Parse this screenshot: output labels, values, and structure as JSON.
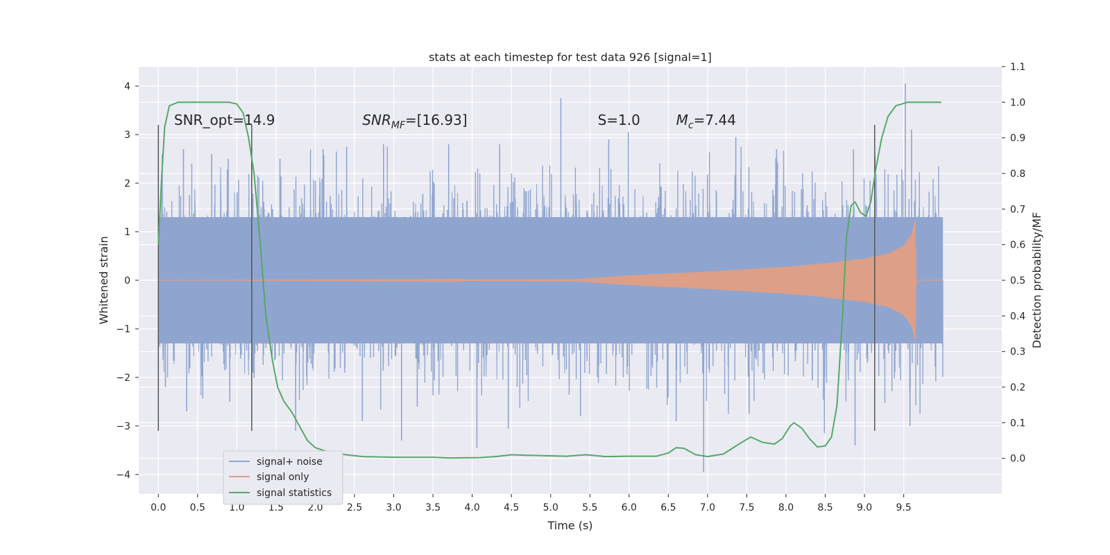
{
  "chart_data": {
    "type": "line",
    "title": "stats at each timestep for test data 926 [signal=1]",
    "xlabel": "Time (s)",
    "ylabel": "Whitened strain",
    "ylabel_right": "Detection probability/MF",
    "xlim": [
      -0.25,
      10.75
    ],
    "ylim": [
      -4.4,
      4.4
    ],
    "ylim_right": [
      -0.1,
      1.1
    ],
    "x_ticks": [
      "0.0",
      "0.5",
      "1.0",
      "1.5",
      "2.0",
      "2.5",
      "3.0",
      "3.5",
      "4.0",
      "4.5",
      "5.0",
      "5.5",
      "6.0",
      "6.5",
      "7.0",
      "7.5",
      "8.0",
      "8.5",
      "9.0",
      "9.5"
    ],
    "y_ticks": [
      "4",
      "3",
      "2",
      "1",
      "0",
      "−1",
      "−2",
      "−3",
      "−4"
    ],
    "y_ticks_right": [
      "1.1",
      "1.0",
      "0.9",
      "0.8",
      "0.7",
      "0.6",
      "0.5",
      "0.4",
      "0.3",
      "0.2",
      "0.1",
      "0.0"
    ],
    "grid": true,
    "legend_position": "lower-left",
    "annotations": [
      {
        "text": "SNR_opt=14.9",
        "x": 0.2,
        "y": 3.2
      },
      {
        "text": "SNR_MF=[16.93]",
        "x": 2.6,
        "y": 3.2
      },
      {
        "text": "S=1.0",
        "x": 5.6,
        "y": 3.2
      },
      {
        "text": "M_c=7.44",
        "x": 6.6,
        "y": 3.2
      }
    ],
    "vertical_lines": [
      {
        "x": 0.0,
        "y_range": [
          -3.1,
          3.2
        ]
      },
      {
        "x": 1.19,
        "y_range": [
          -3.1,
          3.2
        ]
      },
      {
        "x": 9.13,
        "y_range": [
          -3.1,
          3.2
        ]
      }
    ],
    "series": [
      {
        "name": "signal+ noise",
        "color": "#8fa5cf",
        "axis": "left",
        "x_range": [
          0.0,
          10.0
        ],
        "envelope": {
          "typical_min": -1.3,
          "typical_max": 1.3,
          "max": 4.05,
          "min": -3.95
        },
        "peaks": [
          {
            "x": 0.05,
            "y": 2.6
          },
          {
            "x": 0.32,
            "y": 2.7
          },
          {
            "x": 0.68,
            "y": 2.6
          },
          {
            "x": 0.89,
            "y": 2.5
          },
          {
            "x": 1.55,
            "y": 2.5
          },
          {
            "x": 2.1,
            "y": 2.7
          },
          {
            "x": 2.4,
            "y": 2.75
          },
          {
            "x": 2.87,
            "y": 2.8
          },
          {
            "x": 3.7,
            "y": 2.8
          },
          {
            "x": 4.35,
            "y": 2.8
          },
          {
            "x": 5.13,
            "y": 3.75
          },
          {
            "x": 5.74,
            "y": 2.9
          },
          {
            "x": 5.99,
            "y": 3.05
          },
          {
            "x": 7.36,
            "y": 2.95
          },
          {
            "x": 7.88,
            "y": 2.7
          },
          {
            "x": 8.86,
            "y": 2.7
          },
          {
            "x": 9.52,
            "y": 4.05
          },
          {
            "x": 9.6,
            "y": 3.1
          }
        ],
        "troughs": [
          {
            "x": 0.09,
            "y": -2.2
          },
          {
            "x": 0.36,
            "y": -2.7
          },
          {
            "x": 0.91,
            "y": -2.5
          },
          {
            "x": 1.75,
            "y": -3.1
          },
          {
            "x": 2.6,
            "y": -2.9
          },
          {
            "x": 3.1,
            "y": -3.3
          },
          {
            "x": 3.3,
            "y": -2.6
          },
          {
            "x": 4.06,
            "y": -3.45
          },
          {
            "x": 4.46,
            "y": -3.05
          },
          {
            "x": 5.38,
            "y": -2.8
          },
          {
            "x": 6.6,
            "y": -2.9
          },
          {
            "x": 6.95,
            "y": -3.95
          },
          {
            "x": 7.53,
            "y": -2.75
          },
          {
            "x": 8.49,
            "y": -3.15
          },
          {
            "x": 8.88,
            "y": -3.4
          },
          {
            "x": 9.58,
            "y": -3.0
          }
        ]
      },
      {
        "name": "signal only",
        "color": "#dd9f87",
        "axis": "left",
        "amplitude": [
          {
            "x": 0.0,
            "y": 0.0
          },
          {
            "x": 5.3,
            "y": 0.02
          },
          {
            "x": 6.0,
            "y": 0.1
          },
          {
            "x": 7.0,
            "y": 0.18
          },
          {
            "x": 8.0,
            "y": 0.28
          },
          {
            "x": 8.5,
            "y": 0.35
          },
          {
            "x": 9.0,
            "y": 0.45
          },
          {
            "x": 9.3,
            "y": 0.55
          },
          {
            "x": 9.5,
            "y": 0.72
          },
          {
            "x": 9.6,
            "y": 0.95
          },
          {
            "x": 9.65,
            "y": 1.3
          },
          {
            "x": 9.66,
            "y": 0.0
          },
          {
            "x": 10.0,
            "y": 0.0
          }
        ]
      },
      {
        "name": "signal statistics",
        "color": "#55a868",
        "axis": "right",
        "points": [
          {
            "x": 0.0,
            "y": 0.6
          },
          {
            "x": 0.04,
            "y": 0.78
          },
          {
            "x": 0.08,
            "y": 0.93
          },
          {
            "x": 0.14,
            "y": 0.99
          },
          {
            "x": 0.25,
            "y": 1.0
          },
          {
            "x": 0.9,
            "y": 1.0
          },
          {
            "x": 1.0,
            "y": 0.995
          },
          {
            "x": 1.08,
            "y": 0.97
          },
          {
            "x": 1.15,
            "y": 0.9
          },
          {
            "x": 1.22,
            "y": 0.8
          },
          {
            "x": 1.3,
            "y": 0.6
          },
          {
            "x": 1.37,
            "y": 0.4
          },
          {
            "x": 1.45,
            "y": 0.28
          },
          {
            "x": 1.52,
            "y": 0.2
          },
          {
            "x": 1.6,
            "y": 0.16
          },
          {
            "x": 1.7,
            "y": 0.13
          },
          {
            "x": 1.8,
            "y": 0.09
          },
          {
            "x": 1.9,
            "y": 0.05
          },
          {
            "x": 2.0,
            "y": 0.03
          },
          {
            "x": 2.2,
            "y": 0.015
          },
          {
            "x": 2.6,
            "y": 0.005
          },
          {
            "x": 3.0,
            "y": 0.003
          },
          {
            "x": 3.5,
            "y": 0.003
          },
          {
            "x": 3.7,
            "y": 0.001
          },
          {
            "x": 4.1,
            "y": 0.002
          },
          {
            "x": 4.3,
            "y": 0.005
          },
          {
            "x": 4.5,
            "y": 0.01
          },
          {
            "x": 4.8,
            "y": 0.008
          },
          {
            "x": 5.2,
            "y": 0.006
          },
          {
            "x": 5.45,
            "y": 0.01
          },
          {
            "x": 5.7,
            "y": 0.005
          },
          {
            "x": 6.0,
            "y": 0.006
          },
          {
            "x": 6.35,
            "y": 0.006
          },
          {
            "x": 6.5,
            "y": 0.015
          },
          {
            "x": 6.6,
            "y": 0.03
          },
          {
            "x": 6.7,
            "y": 0.028
          },
          {
            "x": 6.85,
            "y": 0.01
          },
          {
            "x": 7.0,
            "y": 0.005
          },
          {
            "x": 7.2,
            "y": 0.012
          },
          {
            "x": 7.4,
            "y": 0.04
          },
          {
            "x": 7.55,
            "y": 0.06
          },
          {
            "x": 7.7,
            "y": 0.045
          },
          {
            "x": 7.85,
            "y": 0.04
          },
          {
            "x": 7.95,
            "y": 0.055
          },
          {
            "x": 8.05,
            "y": 0.09
          },
          {
            "x": 8.1,
            "y": 0.1
          },
          {
            "x": 8.2,
            "y": 0.085
          },
          {
            "x": 8.3,
            "y": 0.055
          },
          {
            "x": 8.4,
            "y": 0.032
          },
          {
            "x": 8.5,
            "y": 0.035
          },
          {
            "x": 8.58,
            "y": 0.06
          },
          {
            "x": 8.65,
            "y": 0.15
          },
          {
            "x": 8.72,
            "y": 0.4
          },
          {
            "x": 8.77,
            "y": 0.62
          },
          {
            "x": 8.83,
            "y": 0.71
          },
          {
            "x": 8.88,
            "y": 0.72
          },
          {
            "x": 8.95,
            "y": 0.69
          },
          {
            "x": 9.02,
            "y": 0.68
          },
          {
            "x": 9.08,
            "y": 0.72
          },
          {
            "x": 9.15,
            "y": 0.82
          },
          {
            "x": 9.22,
            "y": 0.9
          },
          {
            "x": 9.3,
            "y": 0.96
          },
          {
            "x": 9.4,
            "y": 0.99
          },
          {
            "x": 9.55,
            "y": 1.0
          },
          {
            "x": 9.98,
            "y": 1.0
          }
        ]
      }
    ]
  }
}
